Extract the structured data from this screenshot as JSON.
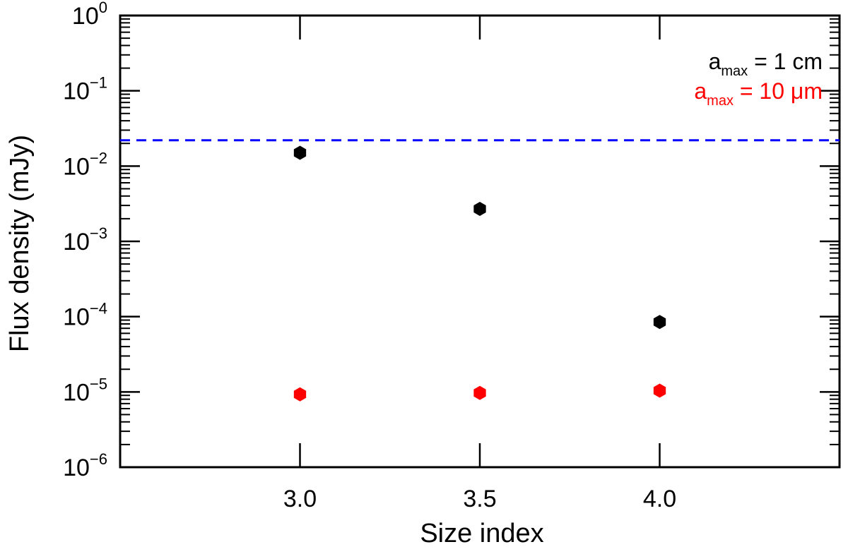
{
  "chart_data": {
    "type": "scatter",
    "xlabel": "Size index",
    "ylabel": "Flux density (mJy)",
    "xlim": [
      2.5,
      4.5
    ],
    "ylim": [
      1e-06,
      1
    ],
    "yscale": "log",
    "x_ticks": [
      "3.0",
      "3.5",
      "4.0"
    ],
    "x_tick_values": [
      3.0,
      3.5,
      4.0
    ],
    "y_tick_base": "10",
    "y_tick_exponents": [
      "0",
      "−1",
      "−2",
      "−3",
      "−4",
      "−5",
      "−6"
    ],
    "y_tick_values": [
      1,
      0.1,
      0.01,
      0.001,
      0.0001,
      1e-05,
      1e-06
    ],
    "grid": false,
    "legend_position": "top-right",
    "series": [
      {
        "name": "a_max = 1 cm",
        "label_prefix": "a",
        "label_sub": "max",
        "label_suffix": " = 1 cm",
        "color": "#000000",
        "marker": "hexagon",
        "x": [
          3.0,
          3.5,
          4.0
        ],
        "y": [
          0.015,
          0.0027,
          8.5e-05
        ]
      },
      {
        "name": "a_max = 10 μm",
        "label_prefix": "a",
        "label_sub": "max",
        "label_suffix": " = 10 μm",
        "color": "#ff0000",
        "marker": "hexagon",
        "x": [
          3.0,
          3.5,
          4.0
        ],
        "y": [
          9.3e-06,
          9.7e-06,
          1.04e-05
        ]
      }
    ],
    "reference_lines": [
      {
        "type": "horizontal",
        "y": 0.022,
        "color": "#0000ff",
        "style": "dashed"
      }
    ]
  }
}
